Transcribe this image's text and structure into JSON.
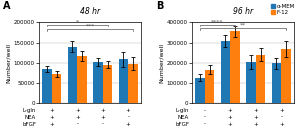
{
  "chart_data": [
    {
      "type": "bar",
      "panel_label": "A",
      "title": "48 hr",
      "y_label": "Number/well",
      "categories": [
        null,
        null,
        null,
        null
      ],
      "condition_rows": [
        {
          "name": "L-gln",
          "labels": [
            "+",
            "+",
            "+",
            "+"
          ]
        },
        {
          "name": "NEA",
          "labels": [
            "+",
            "+",
            "+",
            "-"
          ]
        },
        {
          "name": "bFGF",
          "labels": [
            "+",
            "-",
            "-",
            "+"
          ]
        }
      ],
      "series": [
        {
          "name": "α-MEM",
          "values": [
            85000,
            140000,
            102000,
            108000
          ],
          "errors": [
            8000,
            14000,
            10000,
            18000
          ]
        },
        {
          "name": "F-12",
          "values": [
            72000,
            116000,
            95000,
            97000
          ],
          "errors": [
            7000,
            12000,
            9000,
            16000
          ]
        }
      ],
      "ylim": [
        0,
        200000
      ],
      "yticks": [
        0,
        50000,
        100000,
        150000,
        200000
      ],
      "grid": true,
      "significance": [
        {
          "from": 0,
          "to": 3,
          "y": 183000,
          "label": "***"
        },
        {
          "from": 0,
          "to": 2,
          "y": 194000,
          "label": "*"
        }
      ]
    },
    {
      "type": "bar",
      "panel_label": "B",
      "title": "96 hr",
      "y_label": "Number/well",
      "categories": [
        null,
        null,
        null,
        null
      ],
      "condition_rows": [
        {
          "name": "L-gln",
          "labels": [
            "-",
            "+",
            "+",
            "+"
          ]
        },
        {
          "name": "NEA",
          "labels": [
            "-",
            "+",
            "+",
            "-"
          ]
        },
        {
          "name": "bFGF",
          "labels": [
            "-",
            "+",
            "+",
            "+"
          ]
        }
      ],
      "series": [
        {
          "name": "α-MEM",
          "values": [
            125000,
            310000,
            205000,
            197000
          ],
          "errors": [
            18000,
            30000,
            35000,
            28000
          ]
        },
        {
          "name": "F-12",
          "values": [
            165000,
            355000,
            240000,
            270000
          ],
          "errors": [
            22000,
            28000,
            32000,
            40000
          ]
        }
      ],
      "ylim": [
        0,
        400000
      ],
      "yticks": [
        0,
        100000,
        200000,
        300000,
        400000
      ],
      "grid": true,
      "legend": "upper right",
      "significance": [
        {
          "from": 0,
          "to": 1,
          "y": 388000,
          "label": "****"
        },
        {
          "from": 0,
          "to": 3,
          "y": 372000,
          "label": "**"
        }
      ]
    }
  ]
}
